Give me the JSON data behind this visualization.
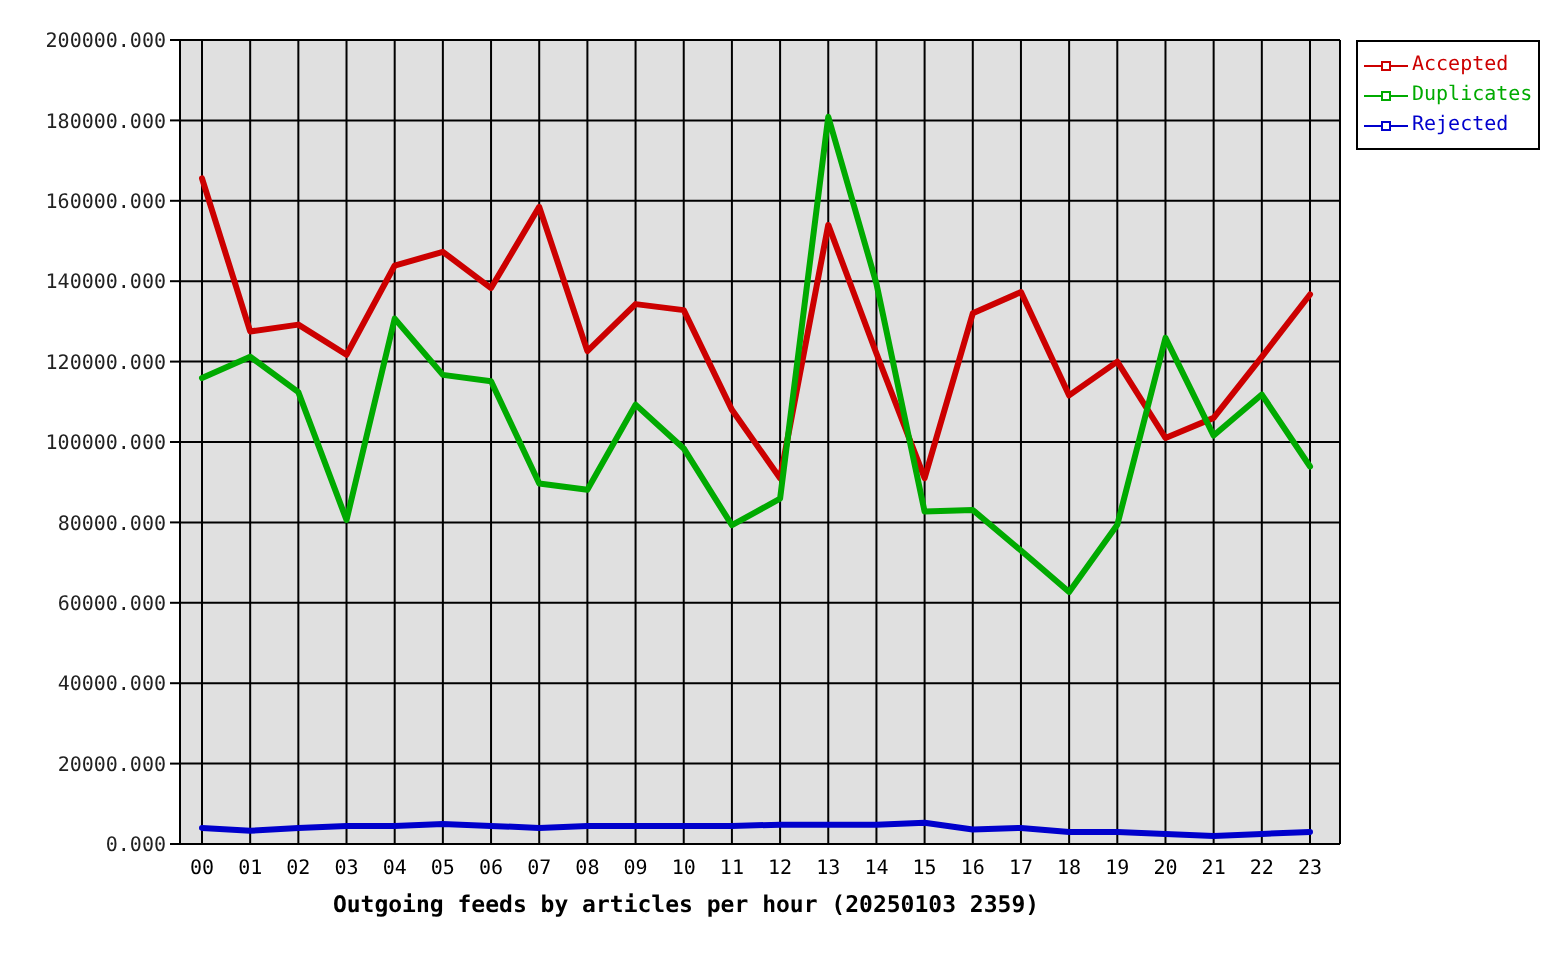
{
  "chart_data": {
    "type": "line",
    "xlabel": "Outgoing feeds by articles per hour (20250103 2359)",
    "categories": [
      "00",
      "01",
      "02",
      "03",
      "04",
      "05",
      "06",
      "07",
      "08",
      "09",
      "10",
      "11",
      "12",
      "13",
      "14",
      "15",
      "16",
      "17",
      "18",
      "19",
      "20",
      "21",
      "22",
      "23"
    ],
    "series": [
      {
        "name": "Accepted",
        "color": "#cc0000",
        "values": [
          165600,
          127500,
          129200,
          121700,
          143900,
          147300,
          138300,
          158500,
          122600,
          134300,
          132800,
          108000,
          91000,
          154000,
          122000,
          91000,
          132000,
          137300,
          111600,
          120000,
          101000,
          106000,
          121200,
          136700
        ]
      },
      {
        "name": "Duplicates",
        "color": "#00aa00",
        "values": [
          115900,
          121200,
          112400,
          80600,
          130700,
          116700,
          115100,
          89700,
          88100,
          109300,
          98400,
          79300,
          85900,
          180900,
          139400,
          82700,
          83100,
          73000,
          62700,
          79400,
          125900,
          101600,
          111800,
          93900
        ]
      },
      {
        "name": "Rejected",
        "color": "#0000cc",
        "values": [
          4000,
          3300,
          4000,
          4500,
          4500,
          5000,
          4500,
          4000,
          4500,
          4500,
          4500,
          4500,
          4800,
          4800,
          4800,
          5300,
          3600,
          4000,
          3000,
          3000,
          2500,
          2000,
          2500,
          3000
        ]
      }
    ],
    "ylim": [
      0,
      200000
    ],
    "yticks": [
      {
        "value": 0,
        "label": "0.000"
      },
      {
        "value": 20000,
        "label": "20000.000"
      },
      {
        "value": 40000,
        "label": "40000.000"
      },
      {
        "value": 60000,
        "label": "60000.000"
      },
      {
        "value": 80000,
        "label": "80000.000"
      },
      {
        "value": 100000,
        "label": "100000.000"
      },
      {
        "value": 120000,
        "label": "120000.000"
      },
      {
        "value": 140000,
        "label": "140000.000"
      },
      {
        "value": 160000,
        "label": "160000.000"
      },
      {
        "value": 180000,
        "label": "180000.000"
      },
      {
        "value": 200000,
        "label": "200000.000"
      }
    ],
    "grid": true,
    "legend": "top right",
    "marker": "none",
    "line_style": "solid"
  }
}
